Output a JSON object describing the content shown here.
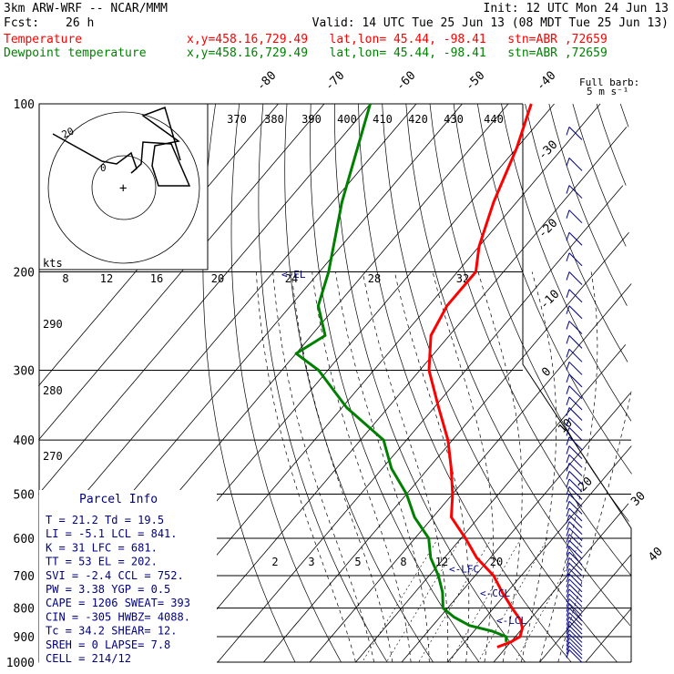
{
  "header": {
    "model": "3km ARW-WRF -- NCAR/MMM",
    "init": "Init: 12 UTC Mon 24 Jun 13",
    "fcst_label": "Fcst:",
    "fcst_value": "26 h",
    "valid": "Valid: 14 UTC Tue 25 Jun 13 (08 MDT Tue 25 Jun 13)",
    "temp_label": "Temperature",
    "dew_label": "Dewpoint temperature",
    "loc_info": "x,y=458.16,729.49   lat,lon= 45.44, -98.41   stn=ABR ,72659"
  },
  "wind_label": {
    "line1": "Full barb:",
    "line2": "5 m s⁻¹"
  },
  "hodo_labels": {
    "kts": "kts",
    "r20": "20",
    "r0": "0"
  },
  "parcel": {
    "title": "Parcel Info",
    "rows": [
      "T  =   21.2  Td =  19.5",
      "LI =   -5.1  LCL =  841.",
      "K  =     31  LFC =  681.",
      "TT =     53  EL  =  202.",
      "SVI =  -2.4  CCL =  752.",
      "PW =   3.38  YGP =   0.5",
      "CAPE =  1206  SWEAT=  393",
      "CIN =  -305  HWBZ= 4088.",
      "Tc =   34.2  SHEAR=  12.",
      "SREH =    0  LAPSE=  7.8",
      "CELL = 214/12"
    ]
  },
  "level_markers": {
    "lcl": "<-LCL",
    "ccl": "<-CCL",
    "lfc": "<-LFC",
    "el": "<-EL"
  },
  "chart_data": {
    "type": "line",
    "pressure_levels": [
      100,
      200,
      300,
      400,
      500,
      600,
      700,
      800,
      900,
      1000
    ],
    "isotherm_labels": [
      -80,
      -70,
      -60,
      -50,
      -40,
      -30,
      -20,
      -10,
      0,
      10,
      20,
      30,
      40
    ],
    "theta_labels": [
      370,
      380,
      390,
      400,
      410,
      420,
      430,
      440
    ],
    "theta_side_labels": [
      290,
      280,
      270
    ],
    "mixing_ratio_labels": [
      8,
      12,
      16,
      20,
      24,
      28,
      32
    ],
    "mixing_ratio_low_labels": [
      2,
      3,
      5,
      8,
      12,
      20
    ],
    "series": [
      {
        "name": "Temperature",
        "color": "#ff0000",
        "pressure": [
          100,
          120,
          150,
          180,
          200,
          230,
          260,
          300,
          350,
          400,
          450,
          500,
          550,
          600,
          650,
          700,
          750,
          800,
          840,
          870,
          900,
          920,
          940
        ],
        "temperature": [
          -75,
          -70,
          -65,
          -60,
          -56,
          -56,
          -54,
          -48,
          -39,
          -31,
          -25,
          -20,
          -16,
          -9,
          -3,
          4,
          9,
          14,
          18,
          20,
          21,
          20,
          18
        ]
      },
      {
        "name": "Dewpoint temperature",
        "color": "#008000",
        "pressure": [
          100,
          150,
          200,
          230,
          260,
          280,
          300,
          350,
          400,
          450,
          500,
          550,
          600,
          650,
          700,
          750,
          800,
          830,
          860,
          880,
          900,
          920
        ],
        "temperature": [
          -110,
          -98,
          -88,
          -84,
          -77,
          -80,
          -72,
          -59,
          -45,
          -38,
          -30,
          -24,
          -17,
          -13,
          -8,
          -4,
          -1,
          3,
          8,
          14,
          18,
          19
        ]
      }
    ]
  }
}
